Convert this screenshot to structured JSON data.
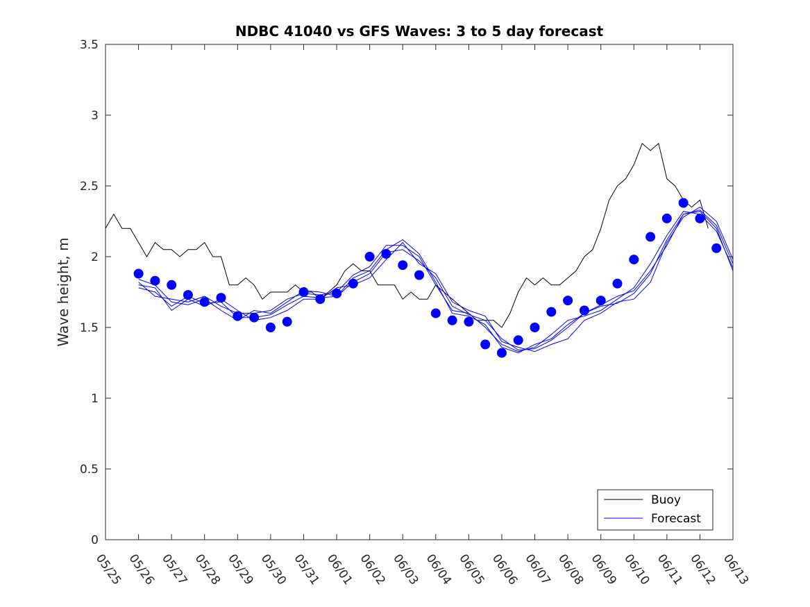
{
  "chart_data": {
    "type": "line",
    "title": "NDBC 41040 vs GFS Waves: 3 to 5 day forecast",
    "xlabel": "",
    "ylabel": "Wave height, m",
    "xlim": [
      0,
      19
    ],
    "ylim": [
      0,
      3.5
    ],
    "yticks": [
      0,
      0.5,
      1,
      1.5,
      2,
      2.5,
      3,
      3.5
    ],
    "ytick_labels": [
      "0",
      "0.5",
      "1",
      "1.5",
      "2",
      "2.5",
      "3",
      "3.5"
    ],
    "x_tick_labels": [
      "05/25",
      "05/26",
      "05/27",
      "05/28",
      "05/29",
      "05/30",
      "05/31",
      "06/01",
      "06/02",
      "06/03",
      "06/04",
      "06/05",
      "06/06",
      "06/07",
      "06/08",
      "06/09",
      "06/10",
      "06/11",
      "06/12",
      "06/13"
    ],
    "x_unit": "days after 05/25",
    "grid": false,
    "legend_position": "bottom-right",
    "colors": {
      "buoy": "#000000",
      "forecast": "#0000ff",
      "axis": "#262626"
    },
    "series": [
      {
        "name": "Buoy",
        "kind": "line",
        "x": [
          0,
          0.25,
          0.5,
          0.75,
          1,
          1.25,
          1.5,
          1.75,
          2,
          2.25,
          2.5,
          2.75,
          3,
          3.25,
          3.5,
          3.75,
          4,
          4.25,
          4.5,
          4.75,
          5,
          5.25,
          5.5,
          5.75,
          6,
          6.25,
          6.5,
          6.75,
          7,
          7.25,
          7.5,
          7.75,
          8,
          8.25,
          8.5,
          8.75,
          9,
          9.25,
          9.5,
          9.75,
          10,
          10.25,
          10.5,
          10.75,
          11,
          11.25,
          11.5,
          11.75,
          12,
          12.25,
          12.5,
          12.75,
          13,
          13.25,
          13.5,
          13.75,
          14,
          14.25,
          14.5,
          14.75,
          15,
          15.25,
          15.5,
          15.75,
          16,
          16.25,
          16.5,
          16.75,
          17,
          17.25,
          17.5,
          17.75,
          18,
          18.25
        ],
        "y": [
          2.2,
          2.3,
          2.2,
          2.2,
          2.1,
          2.0,
          2.1,
          2.05,
          2.05,
          2.0,
          2.05,
          2.05,
          2.1,
          2.0,
          2.0,
          1.8,
          1.8,
          1.85,
          1.8,
          1.7,
          1.75,
          1.75,
          1.75,
          1.8,
          1.75,
          1.75,
          1.7,
          1.75,
          1.8,
          1.9,
          1.95,
          1.9,
          1.9,
          1.8,
          1.8,
          1.8,
          1.7,
          1.75,
          1.7,
          1.7,
          1.8,
          1.75,
          1.7,
          1.65,
          1.6,
          1.55,
          1.55,
          1.55,
          1.5,
          1.6,
          1.75,
          1.85,
          1.8,
          1.85,
          1.8,
          1.8,
          1.85,
          1.9,
          2.0,
          2.05,
          2.2,
          2.4,
          2.5,
          2.55,
          2.65,
          2.8,
          2.75,
          2.8,
          2.55,
          2.5,
          2.4,
          2.35,
          2.4,
          2.2
        ]
      },
      {
        "name": "Forecast",
        "kind": "line",
        "x": [
          1.0,
          1.5,
          2.0,
          2.5,
          3.0,
          3.5,
          4.0,
          4.5,
          5.0,
          5.5,
          6.0,
          6.5,
          7.0,
          7.5,
          8.0,
          8.5,
          9.0,
          9.5,
          10.0,
          10.5,
          11.0,
          11.5,
          12.0,
          12.5,
          13.0,
          13.5,
          14.0,
          14.5,
          15.0,
          15.5,
          16.0,
          16.5,
          17.0,
          17.5,
          18.0,
          18.5,
          19.0
        ],
        "y": [
          1.78,
          1.75,
          1.65,
          1.72,
          1.67,
          1.68,
          1.57,
          1.57,
          1.59,
          1.66,
          1.72,
          1.71,
          1.72,
          1.82,
          1.88,
          2.03,
          2.05,
          1.97,
          1.85,
          1.65,
          1.59,
          1.55,
          1.42,
          1.34,
          1.35,
          1.41,
          1.5,
          1.6,
          1.65,
          1.67,
          1.74,
          1.88,
          2.12,
          2.3,
          2.33,
          2.22,
          1.95
        ]
      },
      {
        "name": "",
        "kind": "line",
        "x": [
          1.0,
          1.5,
          2.0,
          2.5,
          3.0,
          3.5,
          4.0,
          4.5,
          5.0,
          5.5,
          6.0,
          6.5,
          7.0,
          7.5,
          8.0,
          8.5,
          9.0,
          9.5,
          10.0,
          10.5,
          11.0,
          11.5,
          12.0,
          12.5,
          13.0,
          13.5,
          14.0,
          14.5,
          15.0,
          15.5,
          16.0,
          16.5,
          17.0,
          17.5,
          18.0,
          18.5,
          19.0
        ],
        "y": [
          1.82,
          1.72,
          1.7,
          1.68,
          1.72,
          1.65,
          1.6,
          1.6,
          1.62,
          1.7,
          1.74,
          1.73,
          1.75,
          1.87,
          1.93,
          2.08,
          2.08,
          2.0,
          1.8,
          1.62,
          1.6,
          1.5,
          1.38,
          1.33,
          1.36,
          1.45,
          1.55,
          1.58,
          1.62,
          1.7,
          1.78,
          1.95,
          2.15,
          2.32,
          2.3,
          2.18,
          1.92
        ]
      },
      {
        "name": "",
        "kind": "line",
        "x": [
          1.0,
          1.5,
          2.0,
          2.5,
          3.0,
          3.5,
          4.0,
          4.5,
          5.0,
          5.5,
          6.0,
          6.5,
          7.0,
          7.5,
          8.0,
          8.5,
          9.0,
          9.5,
          10.0,
          10.5,
          11.0,
          11.5,
          12.0,
          12.5,
          13.0,
          13.5,
          14.0,
          14.5,
          15.0,
          15.5,
          16.0,
          16.5,
          17.0,
          17.5,
          18.0,
          18.5,
          19.0
        ],
        "y": [
          1.8,
          1.78,
          1.62,
          1.7,
          1.65,
          1.7,
          1.62,
          1.55,
          1.57,
          1.62,
          1.7,
          1.7,
          1.78,
          1.8,
          1.85,
          1.98,
          2.1,
          1.95,
          1.88,
          1.68,
          1.62,
          1.58,
          1.4,
          1.36,
          1.33,
          1.38,
          1.42,
          1.55,
          1.6,
          1.68,
          1.7,
          1.82,
          2.1,
          2.28,
          2.35,
          2.25,
          1.98
        ]
      },
      {
        "name": "",
        "kind": "line",
        "x": [
          1.0,
          1.5,
          2.0,
          2.5,
          3.0,
          3.5,
          4.0,
          4.5,
          5.0,
          5.5,
          6.0,
          6.5,
          7.0,
          7.5,
          8.0,
          8.5,
          9.0,
          9.5,
          10.0,
          10.5,
          11.0,
          11.5,
          12.0,
          12.5,
          13.0,
          13.5,
          14.0,
          14.5,
          15.0,
          15.5,
          16.0,
          16.5,
          17.0,
          17.5,
          18.0,
          18.5,
          19.0
        ],
        "y": [
          1.84,
          1.8,
          1.68,
          1.66,
          1.7,
          1.62,
          1.55,
          1.62,
          1.6,
          1.68,
          1.76,
          1.75,
          1.72,
          1.85,
          1.9,
          2.05,
          2.12,
          2.02,
          1.82,
          1.6,
          1.58,
          1.52,
          1.36,
          1.32,
          1.38,
          1.42,
          1.52,
          1.6,
          1.66,
          1.72,
          1.76,
          1.9,
          2.08,
          2.3,
          2.32,
          2.2,
          1.9
        ]
      },
      {
        "name": "",
        "kind": "markers",
        "x": [
          1.0,
          1.5,
          2.0,
          2.5,
          3.0,
          3.5,
          4.0,
          4.5,
          5.0,
          5.5,
          6.0,
          6.5,
          7.0,
          7.5,
          8.0,
          8.5,
          9.0,
          9.5,
          10.0,
          10.5,
          11.0,
          11.5,
          12.0,
          12.5,
          13.0,
          13.5,
          14.0,
          14.5,
          15.0,
          15.5,
          16.0,
          16.5,
          17.0,
          17.5,
          18.0,
          18.5
        ],
        "y": [
          1.88,
          1.83,
          1.8,
          1.73,
          1.68,
          1.71,
          1.58,
          1.57,
          1.5,
          1.54,
          1.75,
          1.7,
          1.74,
          1.81,
          2.0,
          2.02,
          1.94,
          1.87,
          1.6,
          1.55,
          1.54,
          1.38,
          1.32,
          1.41,
          1.5,
          1.61,
          1.69,
          1.62,
          1.69,
          1.81,
          1.98,
          2.14,
          2.27,
          2.38,
          2.27,
          2.06
        ]
      }
    ],
    "legend": [
      "Buoy",
      "Forecast"
    ]
  }
}
